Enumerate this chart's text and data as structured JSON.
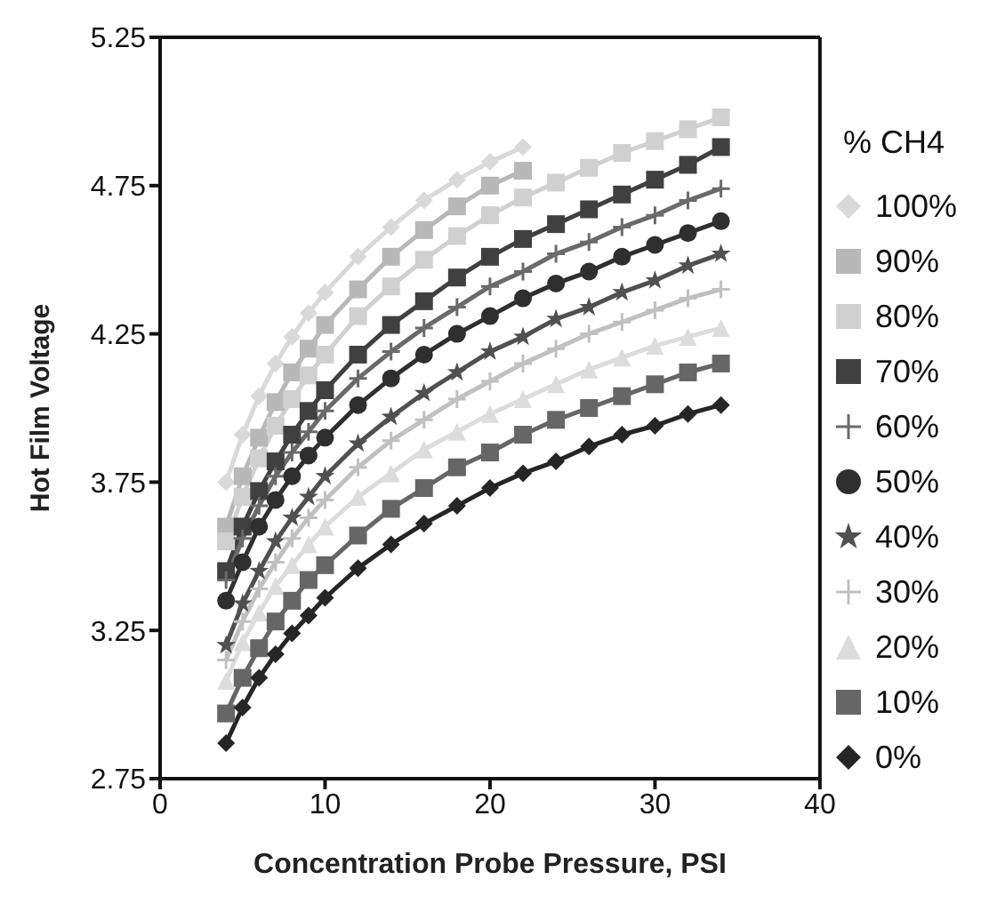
{
  "chart_data": {
    "type": "line",
    "xlabel": "Concentration Probe Pressure, PSI",
    "ylabel": "Hot Film Voltage",
    "legend_title": "% CH4",
    "legend": "right",
    "grid": false,
    "xlim": [
      0,
      40
    ],
    "xticks": [
      0,
      10,
      20,
      30,
      40
    ],
    "ylim": [
      2.75,
      5.25
    ],
    "yticks": [
      2.75,
      3.25,
      3.75,
      4.25,
      4.75,
      5.25
    ],
    "x": [
      4,
      5,
      6,
      7,
      8,
      9,
      10,
      12,
      14,
      16,
      18,
      20,
      22,
      24,
      26,
      28,
      30,
      32,
      34
    ],
    "series": [
      {
        "name": "100%",
        "color": "#d9d9d9",
        "marker": "diamond",
        "values": [
          3.75,
          3.91,
          4.04,
          4.15,
          4.24,
          4.32,
          4.39,
          4.51,
          4.61,
          4.7,
          4.77,
          4.83,
          4.88,
          null,
          null,
          null,
          null,
          null,
          null
        ]
      },
      {
        "name": "90%",
        "color": "#b8b8b8",
        "marker": "square",
        "values": [
          3.6,
          3.77,
          3.9,
          4.02,
          4.12,
          4.2,
          4.28,
          4.4,
          4.51,
          4.6,
          4.68,
          4.75,
          4.8,
          null,
          null,
          null,
          null,
          null,
          null
        ]
      },
      {
        "name": "80%",
        "color": "#d0d0d0",
        "marker": "square",
        "values": [
          3.55,
          3.7,
          3.83,
          3.94,
          4.03,
          4.11,
          4.18,
          4.31,
          4.41,
          4.5,
          4.58,
          4.65,
          4.71,
          4.76,
          4.81,
          4.86,
          4.9,
          4.94,
          4.98
        ]
      },
      {
        "name": "70%",
        "color": "#404040",
        "marker": "square",
        "values": [
          3.45,
          3.6,
          3.72,
          3.82,
          3.91,
          3.99,
          4.06,
          4.18,
          4.28,
          4.36,
          4.44,
          4.51,
          4.57,
          4.62,
          4.67,
          4.72,
          4.77,
          4.82,
          4.88
        ]
      },
      {
        "name": "60%",
        "color": "#6a6a6a",
        "marker": "cross",
        "values": [
          3.42,
          3.56,
          3.67,
          3.77,
          3.85,
          3.92,
          3.99,
          4.1,
          4.19,
          4.27,
          4.34,
          4.41,
          4.46,
          4.52,
          4.56,
          4.61,
          4.65,
          4.7,
          4.74
        ]
      },
      {
        "name": "50%",
        "color": "#2f2f2f",
        "marker": "circle",
        "values": [
          3.35,
          3.48,
          3.6,
          3.69,
          3.77,
          3.84,
          3.9,
          4.01,
          4.1,
          4.18,
          4.25,
          4.31,
          4.37,
          4.42,
          4.46,
          4.51,
          4.55,
          4.59,
          4.63
        ]
      },
      {
        "name": "40%",
        "color": "#505050",
        "marker": "star",
        "values": [
          3.2,
          3.34,
          3.45,
          3.55,
          3.63,
          3.7,
          3.77,
          3.88,
          3.97,
          4.05,
          4.12,
          4.19,
          4.24,
          4.3,
          4.34,
          4.39,
          4.43,
          4.48,
          4.52
        ]
      },
      {
        "name": "30%",
        "color": "#c0c0c0",
        "marker": "cross",
        "values": [
          3.15,
          3.28,
          3.39,
          3.48,
          3.56,
          3.63,
          3.69,
          3.8,
          3.89,
          3.96,
          4.03,
          4.09,
          4.15,
          4.2,
          4.25,
          4.29,
          4.33,
          4.37,
          4.4
        ]
      },
      {
        "name": "20%",
        "color": "#dcdcdc",
        "marker": "triangle",
        "values": [
          3.08,
          3.21,
          3.31,
          3.4,
          3.47,
          3.54,
          3.6,
          3.7,
          3.78,
          3.86,
          3.92,
          3.98,
          4.03,
          4.08,
          4.13,
          4.17,
          4.21,
          4.24,
          4.27
        ]
      },
      {
        "name": "10%",
        "color": "#666666",
        "marker": "square",
        "values": [
          2.97,
          3.09,
          3.19,
          3.28,
          3.35,
          3.42,
          3.47,
          3.57,
          3.66,
          3.73,
          3.8,
          3.85,
          3.91,
          3.96,
          4.0,
          4.04,
          4.08,
          4.12,
          4.15
        ]
      },
      {
        "name": "0%",
        "color": "#262626",
        "marker": "diamond",
        "values": [
          2.87,
          2.99,
          3.09,
          3.17,
          3.24,
          3.3,
          3.36,
          3.46,
          3.54,
          3.61,
          3.67,
          3.73,
          3.78,
          3.82,
          3.87,
          3.91,
          3.94,
          3.98,
          4.01
        ]
      }
    ]
  }
}
